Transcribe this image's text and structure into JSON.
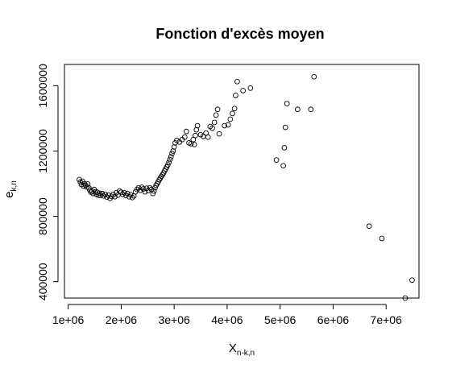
{
  "chart_data": {
    "type": "scatter",
    "title": "Fonction d'excès moyen",
    "xlabel": {
      "main": "X",
      "sub": "n-k,n"
    },
    "ylabel": {
      "main": "e",
      "sub": "k,n"
    },
    "x_ticks": [
      "1e+06",
      "2e+06",
      "3e+06",
      "4e+06",
      "5e+06",
      "6e+06",
      "7e+06"
    ],
    "x_tick_values": [
      1000000,
      2000000,
      3000000,
      4000000,
      5000000,
      6000000,
      7000000
    ],
    "y_ticks": [
      "400000",
      "800000",
      "1200000",
      "1600000"
    ],
    "y_tick_values": [
      400000,
      800000,
      1200000,
      1600000
    ],
    "xlim": [
      930000,
      7620000
    ],
    "ylim": [
      300000,
      1730000
    ],
    "grid": false,
    "legend": "none",
    "marker": "open-circle",
    "points": [
      [
        1210000,
        1025000
      ],
      [
        1230000,
        1010000
      ],
      [
        1250000,
        995000
      ],
      [
        1270000,
        1015000
      ],
      [
        1290000,
        985000
      ],
      [
        1310000,
        1000000
      ],
      [
        1330000,
        990000
      ],
      [
        1350000,
        980000
      ],
      [
        1370000,
        998000
      ],
      [
        1390000,
        975000
      ],
      [
        1410000,
        960000
      ],
      [
        1430000,
        948000
      ],
      [
        1450000,
        955000
      ],
      [
        1470000,
        940000
      ],
      [
        1490000,
        965000
      ],
      [
        1510000,
        950000
      ],
      [
        1530000,
        935000
      ],
      [
        1550000,
        948000
      ],
      [
        1570000,
        930000
      ],
      [
        1590000,
        942000
      ],
      [
        1610000,
        928000
      ],
      [
        1640000,
        940000
      ],
      [
        1670000,
        925000
      ],
      [
        1700000,
        935000
      ],
      [
        1730000,
        918000
      ],
      [
        1760000,
        930000
      ],
      [
        1790000,
        910000
      ],
      [
        1820000,
        922000
      ],
      [
        1850000,
        935000
      ],
      [
        1880000,
        920000
      ],
      [
        1910000,
        945000
      ],
      [
        1940000,
        930000
      ],
      [
        1970000,
        955000
      ],
      [
        2000000,
        948000
      ],
      [
        2030000,
        935000
      ],
      [
        2060000,
        945000
      ],
      [
        2090000,
        928000
      ],
      [
        2120000,
        940000
      ],
      [
        2150000,
        920000
      ],
      [
        2180000,
        932000
      ],
      [
        2210000,
        915000
      ],
      [
        2240000,
        925000
      ],
      [
        2270000,
        950000
      ],
      [
        2300000,
        965000
      ],
      [
        2330000,
        975000
      ],
      [
        2360000,
        960000
      ],
      [
        2390000,
        978000
      ],
      [
        2420000,
        968000
      ],
      [
        2450000,
        950000
      ],
      [
        2480000,
        972000
      ],
      [
        2510000,
        958000
      ],
      [
        2540000,
        975000
      ],
      [
        2570000,
        965000
      ],
      [
        2600000,
        940000
      ],
      [
        2620000,
        955000
      ],
      [
        2640000,
        975000
      ],
      [
        2660000,
        990000
      ],
      [
        2680000,
        1000000
      ],
      [
        2700000,
        1012000
      ],
      [
        2720000,
        1025000
      ],
      [
        2740000,
        1035000
      ],
      [
        2760000,
        1045000
      ],
      [
        2780000,
        1055000
      ],
      [
        2800000,
        1065000
      ],
      [
        2820000,
        1078000
      ],
      [
        2840000,
        1090000
      ],
      [
        2860000,
        1102000
      ],
      [
        2880000,
        1115000
      ],
      [
        2900000,
        1130000
      ],
      [
        2920000,
        1148000
      ],
      [
        2940000,
        1165000
      ],
      [
        2960000,
        1185000
      ],
      [
        2980000,
        1200000
      ],
      [
        3000000,
        1225000
      ],
      [
        3020000,
        1250000
      ],
      [
        3050000,
        1265000
      ],
      [
        3100000,
        1255000
      ],
      [
        3150000,
        1270000
      ],
      [
        3200000,
        1285000
      ],
      [
        3230000,
        1320000
      ],
      [
        3280000,
        1250000
      ],
      [
        3320000,
        1245000
      ],
      [
        3360000,
        1270000
      ],
      [
        3380000,
        1240000
      ],
      [
        3400000,
        1295000
      ],
      [
        3420000,
        1330000
      ],
      [
        3440000,
        1355000
      ],
      [
        3500000,
        1300000
      ],
      [
        3550000,
        1290000
      ],
      [
        3600000,
        1310000
      ],
      [
        3640000,
        1285000
      ],
      [
        3680000,
        1350000
      ],
      [
        3720000,
        1340000
      ],
      [
        3760000,
        1375000
      ],
      [
        3790000,
        1420000
      ],
      [
        3820000,
        1455000
      ],
      [
        3850000,
        1305000
      ],
      [
        3950000,
        1355000
      ],
      [
        4020000,
        1360000
      ],
      [
        4060000,
        1395000
      ],
      [
        4100000,
        1430000
      ],
      [
        4140000,
        1460000
      ],
      [
        4160000,
        1540000
      ],
      [
        4190000,
        1625000
      ],
      [
        4300000,
        1570000
      ],
      [
        4440000,
        1585000
      ],
      [
        4930000,
        1145000
      ],
      [
        5060000,
        1110000
      ],
      [
        5080000,
        1220000
      ],
      [
        5100000,
        1345000
      ],
      [
        5130000,
        1490000
      ],
      [
        5330000,
        1455000
      ],
      [
        5580000,
        1455000
      ],
      [
        5640000,
        1655000
      ],
      [
        6680000,
        740000
      ],
      [
        6920000,
        665000
      ],
      [
        7360000,
        300000
      ],
      [
        7490000,
        410000
      ]
    ]
  }
}
